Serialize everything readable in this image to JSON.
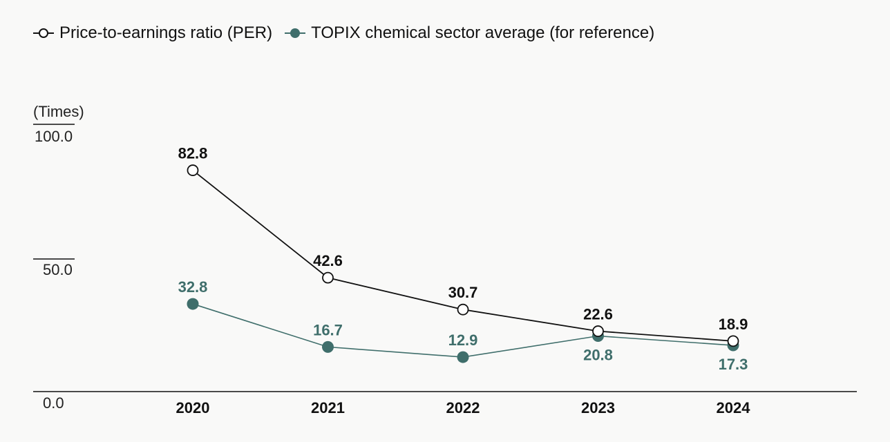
{
  "chart_data": {
    "type": "line",
    "ylabel": "(Times)",
    "ylim": [
      0,
      100
    ],
    "yticks": [
      "0.0",
      "50.0",
      "100.0"
    ],
    "categories": [
      "2020",
      "2021",
      "2022",
      "2023",
      "2024"
    ],
    "series": [
      {
        "name": "Price-to-earnings ratio (PER)",
        "values": [
          82.8,
          42.6,
          30.7,
          22.6,
          18.9
        ],
        "labels": [
          "82.8",
          "42.6",
          "30.7",
          "22.6",
          "18.9"
        ],
        "color": "#111111",
        "marker": "hollow-circle"
      },
      {
        "name": "TOPIX chemical sector average (for reference)",
        "values": [
          32.8,
          16.7,
          12.9,
          20.8,
          17.3
        ],
        "labels": [
          "32.8",
          "16.7",
          "12.9",
          "20.8",
          "17.3"
        ],
        "color": "#3f6e6b",
        "marker": "filled-circle"
      }
    ]
  }
}
